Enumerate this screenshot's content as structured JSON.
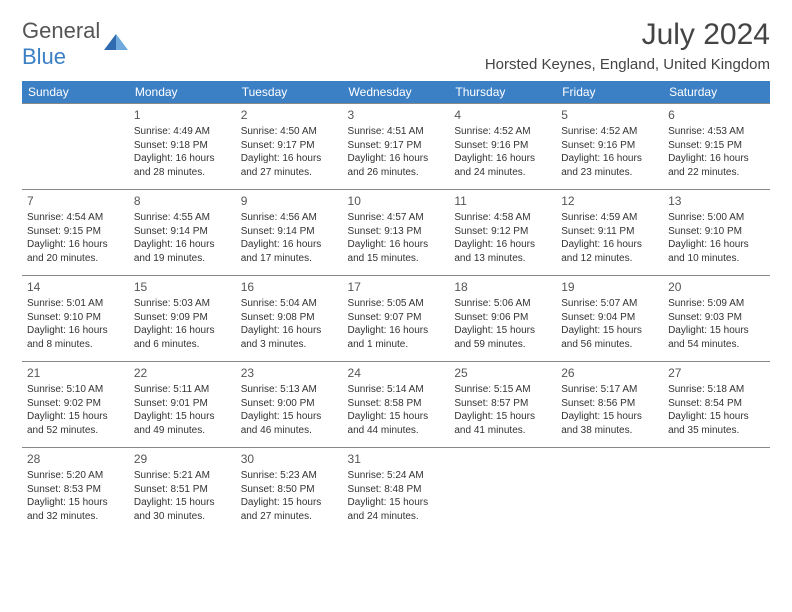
{
  "logo": {
    "general": "General",
    "blue": "Blue"
  },
  "title": "July 2024",
  "location": "Horsted Keynes, England, United Kingdom",
  "colors": {
    "header_bg": "#3b7fc4",
    "header_text": "#ffffff",
    "border": "#888888",
    "text": "#333333"
  },
  "day_headers": [
    "Sunday",
    "Monday",
    "Tuesday",
    "Wednesday",
    "Thursday",
    "Friday",
    "Saturday"
  ],
  "weeks": [
    [
      {
        "blank": true
      },
      {
        "n": "1",
        "sr": "Sunrise: 4:49 AM",
        "ss": "Sunset: 9:18 PM",
        "d1": "Daylight: 16 hours",
        "d2": "and 28 minutes."
      },
      {
        "n": "2",
        "sr": "Sunrise: 4:50 AM",
        "ss": "Sunset: 9:17 PM",
        "d1": "Daylight: 16 hours",
        "d2": "and 27 minutes."
      },
      {
        "n": "3",
        "sr": "Sunrise: 4:51 AM",
        "ss": "Sunset: 9:17 PM",
        "d1": "Daylight: 16 hours",
        "d2": "and 26 minutes."
      },
      {
        "n": "4",
        "sr": "Sunrise: 4:52 AM",
        "ss": "Sunset: 9:16 PM",
        "d1": "Daylight: 16 hours",
        "d2": "and 24 minutes."
      },
      {
        "n": "5",
        "sr": "Sunrise: 4:52 AM",
        "ss": "Sunset: 9:16 PM",
        "d1": "Daylight: 16 hours",
        "d2": "and 23 minutes."
      },
      {
        "n": "6",
        "sr": "Sunrise: 4:53 AM",
        "ss": "Sunset: 9:15 PM",
        "d1": "Daylight: 16 hours",
        "d2": "and 22 minutes."
      }
    ],
    [
      {
        "n": "7",
        "sr": "Sunrise: 4:54 AM",
        "ss": "Sunset: 9:15 PM",
        "d1": "Daylight: 16 hours",
        "d2": "and 20 minutes."
      },
      {
        "n": "8",
        "sr": "Sunrise: 4:55 AM",
        "ss": "Sunset: 9:14 PM",
        "d1": "Daylight: 16 hours",
        "d2": "and 19 minutes."
      },
      {
        "n": "9",
        "sr": "Sunrise: 4:56 AM",
        "ss": "Sunset: 9:14 PM",
        "d1": "Daylight: 16 hours",
        "d2": "and 17 minutes."
      },
      {
        "n": "10",
        "sr": "Sunrise: 4:57 AM",
        "ss": "Sunset: 9:13 PM",
        "d1": "Daylight: 16 hours",
        "d2": "and 15 minutes."
      },
      {
        "n": "11",
        "sr": "Sunrise: 4:58 AM",
        "ss": "Sunset: 9:12 PM",
        "d1": "Daylight: 16 hours",
        "d2": "and 13 minutes."
      },
      {
        "n": "12",
        "sr": "Sunrise: 4:59 AM",
        "ss": "Sunset: 9:11 PM",
        "d1": "Daylight: 16 hours",
        "d2": "and 12 minutes."
      },
      {
        "n": "13",
        "sr": "Sunrise: 5:00 AM",
        "ss": "Sunset: 9:10 PM",
        "d1": "Daylight: 16 hours",
        "d2": "and 10 minutes."
      }
    ],
    [
      {
        "n": "14",
        "sr": "Sunrise: 5:01 AM",
        "ss": "Sunset: 9:10 PM",
        "d1": "Daylight: 16 hours",
        "d2": "and 8 minutes."
      },
      {
        "n": "15",
        "sr": "Sunrise: 5:03 AM",
        "ss": "Sunset: 9:09 PM",
        "d1": "Daylight: 16 hours",
        "d2": "and 6 minutes."
      },
      {
        "n": "16",
        "sr": "Sunrise: 5:04 AM",
        "ss": "Sunset: 9:08 PM",
        "d1": "Daylight: 16 hours",
        "d2": "and 3 minutes."
      },
      {
        "n": "17",
        "sr": "Sunrise: 5:05 AM",
        "ss": "Sunset: 9:07 PM",
        "d1": "Daylight: 16 hours",
        "d2": "and 1 minute."
      },
      {
        "n": "18",
        "sr": "Sunrise: 5:06 AM",
        "ss": "Sunset: 9:06 PM",
        "d1": "Daylight: 15 hours",
        "d2": "and 59 minutes."
      },
      {
        "n": "19",
        "sr": "Sunrise: 5:07 AM",
        "ss": "Sunset: 9:04 PM",
        "d1": "Daylight: 15 hours",
        "d2": "and 56 minutes."
      },
      {
        "n": "20",
        "sr": "Sunrise: 5:09 AM",
        "ss": "Sunset: 9:03 PM",
        "d1": "Daylight: 15 hours",
        "d2": "and 54 minutes."
      }
    ],
    [
      {
        "n": "21",
        "sr": "Sunrise: 5:10 AM",
        "ss": "Sunset: 9:02 PM",
        "d1": "Daylight: 15 hours",
        "d2": "and 52 minutes."
      },
      {
        "n": "22",
        "sr": "Sunrise: 5:11 AM",
        "ss": "Sunset: 9:01 PM",
        "d1": "Daylight: 15 hours",
        "d2": "and 49 minutes."
      },
      {
        "n": "23",
        "sr": "Sunrise: 5:13 AM",
        "ss": "Sunset: 9:00 PM",
        "d1": "Daylight: 15 hours",
        "d2": "and 46 minutes."
      },
      {
        "n": "24",
        "sr": "Sunrise: 5:14 AM",
        "ss": "Sunset: 8:58 PM",
        "d1": "Daylight: 15 hours",
        "d2": "and 44 minutes."
      },
      {
        "n": "25",
        "sr": "Sunrise: 5:15 AM",
        "ss": "Sunset: 8:57 PM",
        "d1": "Daylight: 15 hours",
        "d2": "and 41 minutes."
      },
      {
        "n": "26",
        "sr": "Sunrise: 5:17 AM",
        "ss": "Sunset: 8:56 PM",
        "d1": "Daylight: 15 hours",
        "d2": "and 38 minutes."
      },
      {
        "n": "27",
        "sr": "Sunrise: 5:18 AM",
        "ss": "Sunset: 8:54 PM",
        "d1": "Daylight: 15 hours",
        "d2": "and 35 minutes."
      }
    ],
    [
      {
        "n": "28",
        "sr": "Sunrise: 5:20 AM",
        "ss": "Sunset: 8:53 PM",
        "d1": "Daylight: 15 hours",
        "d2": "and 32 minutes."
      },
      {
        "n": "29",
        "sr": "Sunrise: 5:21 AM",
        "ss": "Sunset: 8:51 PM",
        "d1": "Daylight: 15 hours",
        "d2": "and 30 minutes."
      },
      {
        "n": "30",
        "sr": "Sunrise: 5:23 AM",
        "ss": "Sunset: 8:50 PM",
        "d1": "Daylight: 15 hours",
        "d2": "and 27 minutes."
      },
      {
        "n": "31",
        "sr": "Sunrise: 5:24 AM",
        "ss": "Sunset: 8:48 PM",
        "d1": "Daylight: 15 hours",
        "d2": "and 24 minutes."
      },
      {
        "blank": true
      },
      {
        "blank": true
      },
      {
        "blank": true
      }
    ]
  ]
}
